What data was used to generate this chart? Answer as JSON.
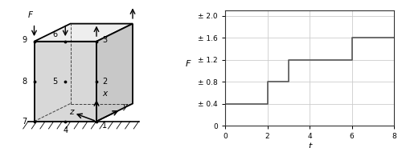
{
  "cube": {
    "face_color": "#d8d8d8",
    "edge_color": "#000000"
  },
  "plot": {
    "t_values": [
      0,
      2,
      2,
      3,
      3,
      4,
      4,
      6,
      6,
      6.3,
      6.3,
      8
    ],
    "F_values": [
      0.4,
      0.4,
      0.8,
      0.8,
      1.2,
      1.2,
      1.2,
      1.2,
      1.6,
      1.6,
      1.6,
      1.6
    ],
    "xlabel": "t",
    "ylabel": "F",
    "xlim": [
      0,
      8
    ],
    "ylim": [
      0,
      2.1
    ],
    "xticks": [
      0,
      2,
      4,
      6,
      8
    ],
    "yticks": [
      0,
      0.4,
      0.8,
      1.2,
      1.6,
      2.0
    ],
    "ytick_labels": [
      "0",
      "± 0.4",
      "± 0.8",
      "± 1.2",
      "± 1.6",
      "± 2.0"
    ],
    "line_color": "#555555",
    "grid_color": "#cccccc",
    "linewidth": 1.2
  }
}
